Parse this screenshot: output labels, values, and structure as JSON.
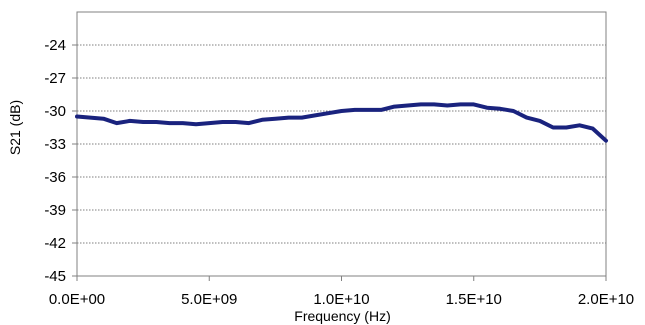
{
  "chart_data": {
    "type": "line",
    "title": "",
    "xlabel": "Frequency (Hz)",
    "ylabel": "S21 (dB)",
    "xlim": [
      0,
      20000000000
    ],
    "ylim": [
      -45,
      -21
    ],
    "grid": "horizontal dotted",
    "line_color": "#1a237e",
    "x_ticks": [
      {
        "value": 0,
        "label": "0.0E+00"
      },
      {
        "value": 5000000000,
        "label": "5.0E+09"
      },
      {
        "value": 10000000000,
        "label": "1.0E+10"
      },
      {
        "value": 15000000000,
        "label": "1.5E+10"
      },
      {
        "value": 20000000000,
        "label": "2.0E+10"
      }
    ],
    "y_ticks": [
      {
        "value": -24,
        "label": "-24"
      },
      {
        "value": -27,
        "label": "-27"
      },
      {
        "value": -30,
        "label": "-30"
      },
      {
        "value": -33,
        "label": "-33"
      },
      {
        "value": -36,
        "label": "-36"
      },
      {
        "value": -39,
        "label": "-39"
      },
      {
        "value": -42,
        "label": "-42"
      },
      {
        "value": -45,
        "label": "-45"
      }
    ],
    "series": [
      {
        "x": [
          0,
          500000000,
          1000000000,
          1500000000,
          2000000000,
          2500000000,
          3000000000,
          3500000000,
          4000000000,
          4500000000,
          5000000000,
          5500000000,
          6000000000,
          6500000000,
          7000000000,
          7500000000,
          8000000000,
          8500000000,
          9000000000,
          9500000000,
          10000000000,
          10500000000,
          11000000000,
          11500000000,
          12000000000,
          12500000000,
          13000000000,
          13500000000,
          14000000000,
          14500000000,
          15000000000,
          15500000000,
          16000000000,
          16500000000,
          17000000000,
          17500000000,
          18000000000,
          18500000000,
          19000000000,
          19500000000,
          20000000000
        ],
        "y": [
          -30.5,
          -30.6,
          -30.7,
          -31.1,
          -30.9,
          -31.0,
          -31.0,
          -31.1,
          -31.1,
          -31.2,
          -31.1,
          -31.0,
          -31.0,
          -31.1,
          -30.8,
          -30.7,
          -30.6,
          -30.6,
          -30.4,
          -30.2,
          -30.0,
          -29.9,
          -29.9,
          -29.9,
          -29.6,
          -29.5,
          -29.4,
          -29.4,
          -29.5,
          -29.4,
          -29.4,
          -29.7,
          -29.8,
          -30.0,
          -30.6,
          -30.9,
          -31.5,
          -31.5,
          -31.3,
          -31.6,
          -32.7
        ]
      }
    ]
  }
}
